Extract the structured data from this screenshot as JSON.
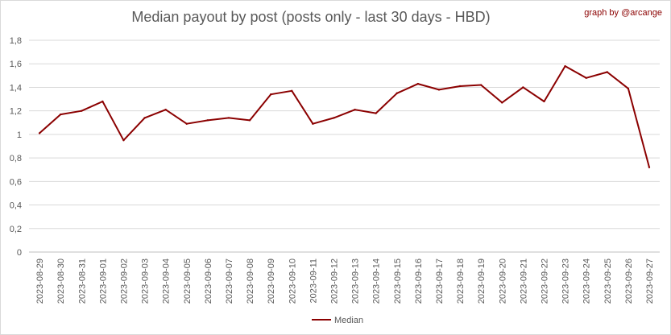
{
  "credit": "graph by @arcange",
  "chart_data": {
    "type": "line",
    "title": "Median payout by post (posts only - last 30 days - HBD)",
    "xlabel": "",
    "ylabel": "",
    "ylim": [
      0,
      1.8
    ],
    "ytick_step": 0.2,
    "grid": true,
    "legend_position": "bottom",
    "line_color": "#8b0000",
    "categories": [
      "2023-08-29",
      "2023-08-30",
      "2023-08-31",
      "2023-09-01",
      "2023-09-02",
      "2023-09-03",
      "2023-09-04",
      "2023-09-05",
      "2023-09-06",
      "2023-09-07",
      "2023-09-08",
      "2023-09-09",
      "2023-09-10",
      "2023-09-11",
      "2023-09-12",
      "2023-09-13",
      "2023-09-14",
      "2023-09-15",
      "2023-09-16",
      "2023-09-17",
      "2023-09-18",
      "2023-09-19",
      "2023-09-20",
      "2023-09-21",
      "2023-09-22",
      "2023-09-23",
      "2023-09-24",
      "2023-09-25",
      "2023-09-26",
      "2023-09-27"
    ],
    "series": [
      {
        "name": "Median",
        "values": [
          1.01,
          1.17,
          1.2,
          1.28,
          0.95,
          1.14,
          1.21,
          1.09,
          1.12,
          1.14,
          1.12,
          1.34,
          1.37,
          1.09,
          1.14,
          1.21,
          1.18,
          1.35,
          1.43,
          1.38,
          1.41,
          1.42,
          1.27,
          1.4,
          1.28,
          1.58,
          1.48,
          1.53,
          1.39,
          0.72
        ]
      }
    ]
  }
}
